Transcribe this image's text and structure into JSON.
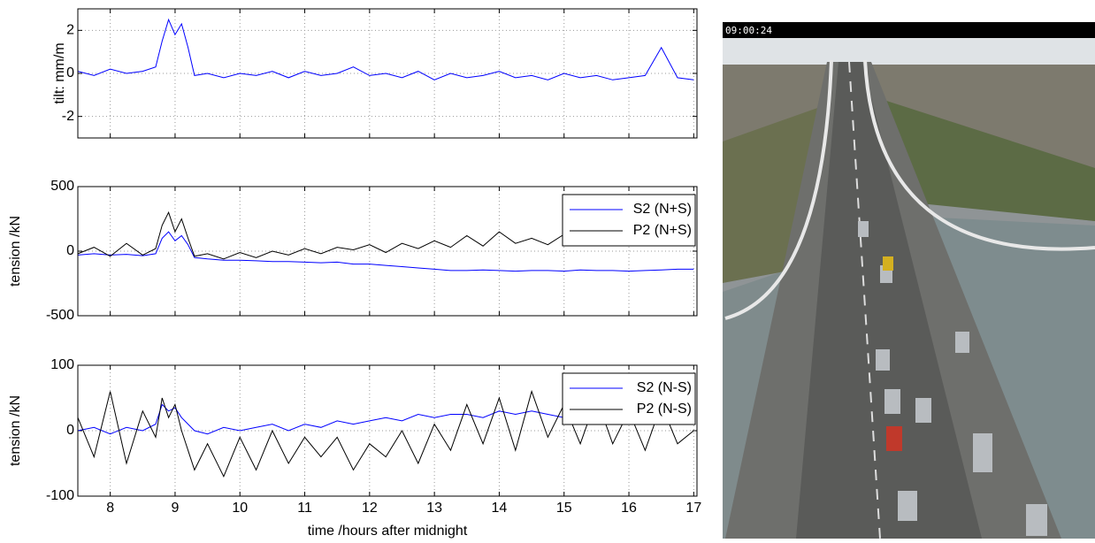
{
  "chart_data": [
    {
      "type": "line",
      "ylabel": "tilt: mm/m",
      "x": [
        7.5,
        7.75,
        8,
        8.25,
        8.5,
        8.7,
        8.8,
        8.9,
        9.0,
        9.1,
        9.2,
        9.3,
        9.5,
        9.75,
        10,
        10.25,
        10.5,
        10.75,
        11,
        11.25,
        11.5,
        11.75,
        12,
        12.25,
        12.5,
        12.75,
        13,
        13.25,
        13.5,
        13.75,
        14,
        14.25,
        14.5,
        14.75,
        15,
        15.25,
        15.5,
        15.75,
        16,
        16.25,
        16.5,
        16.75,
        17
      ],
      "series": [
        {
          "color": "#0000ff",
          "values": [
            0.1,
            -0.1,
            0.2,
            0,
            0.1,
            0.3,
            1.5,
            2.5,
            1.8,
            2.3,
            1.2,
            -0.1,
            0,
            -0.2,
            0,
            -0.1,
            0.1,
            -0.2,
            0.1,
            -0.1,
            0,
            0.3,
            -0.1,
            0,
            -0.2,
            0.1,
            -0.3,
            0,
            -0.2,
            -0.1,
            0.1,
            -0.2,
            -0.1,
            -0.3,
            0,
            -0.2,
            -0.1,
            -0.3,
            -0.2,
            -0.1,
            1.2,
            -0.2,
            -0.3
          ]
        }
      ],
      "xlim": [
        7.5,
        17.05
      ],
      "xticks": [
        8,
        9,
        10,
        11,
        12,
        13,
        14,
        15,
        16,
        17
      ],
      "show_xtick_labels": false,
      "ylim": [
        -3,
        3
      ],
      "yticks": [
        -2,
        0,
        2
      ],
      "grid": true
    },
    {
      "type": "line",
      "ylabel": "tension /kN",
      "x": [
        7.5,
        7.75,
        8,
        8.25,
        8.5,
        8.7,
        8.8,
        8.9,
        9.0,
        9.1,
        9.2,
        9.3,
        9.5,
        9.75,
        10,
        10.25,
        10.5,
        10.75,
        11,
        11.25,
        11.5,
        11.75,
        12,
        12.25,
        12.5,
        12.75,
        13,
        13.25,
        13.5,
        13.75,
        14,
        14.25,
        14.5,
        14.75,
        15,
        15.25,
        15.5,
        15.75,
        16,
        16.25,
        16.5,
        16.75,
        17
      ],
      "series": [
        {
          "name": "S2 (N+S)",
          "color": "#0000ff",
          "values": [
            -30,
            -20,
            -30,
            -25,
            -35,
            -20,
            100,
            150,
            80,
            120,
            50,
            -50,
            -60,
            -70,
            -70,
            -75,
            -80,
            -80,
            -85,
            -90,
            -85,
            -100,
            -100,
            -110,
            -120,
            -130,
            -140,
            -150,
            -150,
            -145,
            -150,
            -155,
            -150,
            -150,
            -155,
            -145,
            -150,
            -150,
            -155,
            -150,
            -145,
            -140,
            -140
          ]
        },
        {
          "name": "P2 (N+S)",
          "color": "#000000",
          "values": [
            -20,
            30,
            -40,
            60,
            -30,
            20,
            200,
            300,
            150,
            250,
            100,
            -40,
            -20,
            -60,
            -10,
            -50,
            0,
            -30,
            20,
            -20,
            30,
            10,
            50,
            -10,
            60,
            20,
            80,
            30,
            120,
            40,
            150,
            60,
            100,
            50,
            130,
            70,
            150,
            60,
            120,
            80,
            160,
            90,
            100
          ]
        }
      ],
      "xlim": [
        7.5,
        17.05
      ],
      "xticks": [
        8,
        9,
        10,
        11,
        12,
        13,
        14,
        15,
        16,
        17
      ],
      "show_xtick_labels": false,
      "ylim": [
        -500,
        500
      ],
      "yticks": [
        -500,
        0,
        500
      ],
      "grid": true,
      "legend": "upper-right"
    },
    {
      "type": "line",
      "ylabel": "tension /kN",
      "xlabel": "time /hours after midnight",
      "x": [
        7.5,
        7.75,
        8,
        8.25,
        8.5,
        8.7,
        8.8,
        8.9,
        9.0,
        9.1,
        9.2,
        9.3,
        9.5,
        9.75,
        10,
        10.25,
        10.5,
        10.75,
        11,
        11.25,
        11.5,
        11.75,
        12,
        12.25,
        12.5,
        12.75,
        13,
        13.25,
        13.5,
        13.75,
        14,
        14.25,
        14.5,
        14.75,
        15,
        15.25,
        15.5,
        15.75,
        16,
        16.25,
        16.5,
        16.75,
        17
      ],
      "series": [
        {
          "name": "S2 (N-S)",
          "color": "#0000ff",
          "values": [
            0,
            5,
            -5,
            5,
            0,
            10,
            40,
            30,
            35,
            20,
            10,
            0,
            -5,
            5,
            0,
            5,
            10,
            0,
            10,
            5,
            15,
            10,
            15,
            20,
            15,
            25,
            20,
            25,
            25,
            20,
            30,
            25,
            30,
            25,
            20,
            25,
            30,
            25,
            30,
            20,
            25,
            30,
            25
          ]
        },
        {
          "name": "P2 (N-S)",
          "color": "#000000",
          "values": [
            20,
            -40,
            60,
            -50,
            30,
            -10,
            50,
            20,
            40,
            0,
            -30,
            -60,
            -20,
            -70,
            -10,
            -60,
            0,
            -50,
            -10,
            -40,
            -10,
            -60,
            -20,
            -40,
            0,
            -50,
            10,
            -30,
            40,
            -20,
            50,
            -30,
            60,
            -10,
            40,
            -20,
            50,
            -20,
            30,
            -30,
            40,
            -20,
            0
          ]
        }
      ],
      "xlim": [
        7.5,
        17.05
      ],
      "xticks": [
        8,
        9,
        10,
        11,
        12,
        13,
        14,
        15,
        16,
        17
      ],
      "show_xtick_labels": true,
      "ylim": [
        -100,
        100
      ],
      "yticks": [
        -100,
        0,
        100
      ],
      "grid": true,
      "legend": "upper-right"
    }
  ],
  "photo": {
    "timestamp": "09:00:24"
  }
}
